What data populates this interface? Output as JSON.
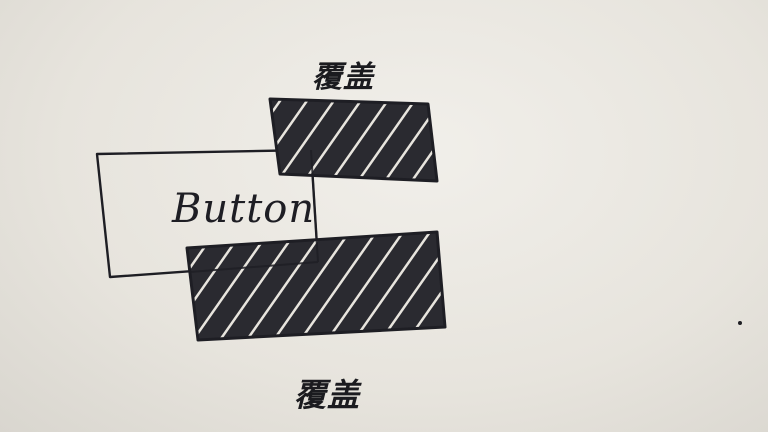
{
  "diagram": {
    "button_label": "Button",
    "overlay_top_label": "覆盖",
    "overlay_bottom_label": "覆盖",
    "ink_color": "#1e1e24",
    "paper_color": "#ece9e2"
  }
}
